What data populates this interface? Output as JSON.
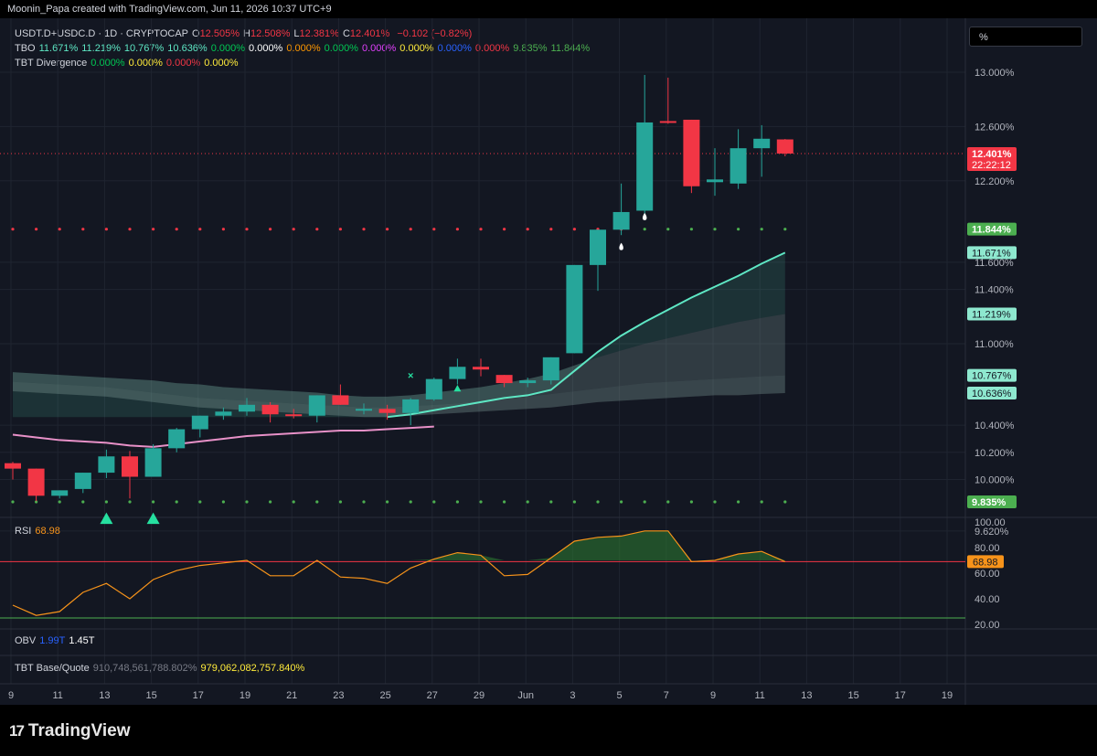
{
  "header": {
    "attribution": "Moonin_Papa created with TradingView.com, Jun 11, 2026 10:37 UTC+9"
  },
  "legend": {
    "symbol": "USDT.D+USDC.D · 1D · CRYPTOCAP",
    "ohlc": [
      {
        "k": "O",
        "v": "12.505%"
      },
      {
        "k": "H",
        "v": "12.508%"
      },
      {
        "k": "L",
        "v": "12.381%"
      },
      {
        "k": "C",
        "v": "12.401%"
      }
    ],
    "change": "−0.102 (−0.82%)",
    "tbo_name": "TBO",
    "tbo_values": [
      {
        "v": "11.671%",
        "c": "#5ee7c4"
      },
      {
        "v": "11.219%",
        "c": "#5ee7c4"
      },
      {
        "v": "10.767%",
        "c": "#5ee7c4"
      },
      {
        "v": "10.636%",
        "c": "#5ee7c4"
      },
      {
        "v": "0.000%",
        "c": "#00c853"
      },
      {
        "v": "0.000%",
        "c": "#ffffff"
      },
      {
        "v": "0.000%",
        "c": "#ff9800"
      },
      {
        "v": "0.000%",
        "c": "#00c853"
      },
      {
        "v": "0.000%",
        "c": "#e040fb"
      },
      {
        "v": "0.000%",
        "c": "#ffeb3b"
      },
      {
        "v": "0.000%",
        "c": "#2962ff"
      },
      {
        "v": "0.000%",
        "c": "#f23645"
      },
      {
        "v": "9.835%",
        "c": "#4caf50"
      },
      {
        "v": "11.844%",
        "c": "#4caf50"
      }
    ],
    "div_name": "TBT Divergence",
    "div_values": [
      {
        "v": "0.000%",
        "c": "#00c853"
      },
      {
        "v": "0.000%",
        "c": "#ffeb3b"
      },
      {
        "v": "0.000%",
        "c": "#f23645"
      },
      {
        "v": "0.000%",
        "c": "#ffeb3b"
      }
    ],
    "price_scale_unit": "%"
  },
  "colors": {
    "up": "#26a69a",
    "down": "#f23645",
    "bg": "#131722",
    "grid": "#1f2430",
    "axis_text": "#b2b5be",
    "band_line": "#5ee7c4",
    "pink_line": "#e891c8",
    "rsi_line": "#f7931a"
  },
  "chart_data": {
    "type": "candlestick",
    "title": "USDT.D+USDC.D · 1D · CRYPTOCAP",
    "x_ticks": [
      "9",
      "11",
      "13",
      "15",
      "17",
      "19",
      "21",
      "23",
      "25",
      "27",
      "29",
      "Jun",
      "3",
      "5",
      "7",
      "9",
      "11",
      "13",
      "15",
      "17",
      "19"
    ],
    "y_ticks": [
      "13.000%",
      "12.600%",
      "12.200%",
      "11.600%",
      "11.400%",
      "11.000%",
      "10.400%",
      "10.200%",
      "10.000%",
      "9.620%"
    ],
    "price_labels": [
      {
        "v": "12.401%",
        "sub": "22:22:12",
        "bg": "#f23645",
        "fg": "#ffffff",
        "y": 12.401
      },
      {
        "v": "11.844%",
        "bg": "#4caf50",
        "fg": "#ffffff",
        "y": 11.844
      },
      {
        "v": "11.671%",
        "bg": "#8ee8cf",
        "fg": "#131722",
        "y": 11.671
      },
      {
        "v": "11.219%",
        "bg": "#8ee8cf",
        "fg": "#131722",
        "y": 11.219
      },
      {
        "v": "10.767%",
        "bg": "#8ee8cf",
        "fg": "#131722",
        "y": 10.767
      },
      {
        "v": "10.636%",
        "bg": "#8ee8cf",
        "fg": "#131722",
        "y": 10.636
      },
      {
        "v": "9.835%",
        "bg": "#4caf50",
        "fg": "#ffffff",
        "y": 9.835
      }
    ],
    "dates": [
      "May 9",
      "May 10",
      "May 11",
      "May 12",
      "May 13",
      "May 14",
      "May 15",
      "May 16",
      "May 17",
      "May 18",
      "May 19",
      "May 20",
      "May 21",
      "May 22",
      "May 23",
      "May 24",
      "May 25",
      "May 26",
      "May 27",
      "May 28",
      "May 29",
      "May 30",
      "May 31",
      "Jun 1",
      "Jun 2",
      "Jun 3",
      "Jun 4",
      "Jun 5",
      "Jun 6",
      "Jun 7",
      "Jun 8",
      "Jun 9",
      "Jun 10",
      "Jun 11"
    ],
    "candles": [
      [
        10.12,
        10.13,
        10.0,
        10.08
      ],
      [
        10.08,
        10.08,
        9.84,
        9.88
      ],
      [
        9.88,
        9.92,
        9.86,
        9.92
      ],
      [
        9.93,
        10.05,
        9.9,
        10.05
      ],
      [
        10.05,
        10.22,
        10.01,
        10.17
      ],
      [
        10.17,
        10.21,
        9.86,
        10.02
      ],
      [
        10.02,
        10.26,
        10.02,
        10.23
      ],
      [
        10.23,
        10.38,
        10.2,
        10.37
      ],
      [
        10.37,
        10.47,
        10.31,
        10.47
      ],
      [
        10.47,
        10.53,
        10.44,
        10.5
      ],
      [
        10.5,
        10.6,
        10.47,
        10.55
      ],
      [
        10.55,
        10.57,
        10.42,
        10.48
      ],
      [
        10.48,
        10.52,
        10.45,
        10.47
      ],
      [
        10.47,
        10.62,
        10.42,
        10.62
      ],
      [
        10.62,
        10.7,
        10.55,
        10.55
      ],
      [
        10.52,
        10.56,
        10.48,
        10.52
      ],
      [
        10.52,
        10.55,
        10.44,
        10.49
      ],
      [
        10.49,
        10.6,
        10.4,
        10.59
      ],
      [
        10.59,
        10.75,
        10.58,
        10.74
      ],
      [
        10.74,
        10.89,
        10.7,
        10.83
      ],
      [
        10.83,
        10.89,
        10.76,
        10.81
      ],
      [
        10.77,
        10.77,
        10.68,
        10.71
      ],
      [
        10.71,
        10.75,
        10.68,
        10.73
      ],
      [
        10.73,
        10.9,
        10.7,
        10.9
      ],
      [
        10.93,
        11.58,
        10.93,
        11.58
      ],
      [
        11.58,
        11.84,
        11.39,
        11.84
      ],
      [
        11.84,
        12.18,
        11.8,
        11.97
      ],
      [
        11.98,
        12.98,
        11.96,
        12.63
      ],
      [
        12.64,
        12.96,
        12.62,
        12.63
      ],
      [
        12.65,
        12.65,
        12.11,
        12.16
      ],
      [
        12.19,
        12.44,
        12.09,
        12.21
      ],
      [
        12.18,
        12.58,
        12.14,
        12.44
      ],
      [
        12.44,
        12.61,
        12.23,
        12.51
      ],
      [
        12.505,
        12.508,
        12.381,
        12.401
      ]
    ],
    "tbo_fast": [
      10.46,
      10.46,
      10.46,
      10.46,
      10.46,
      10.46,
      10.46,
      10.46,
      10.46,
      10.46,
      10.46,
      10.46,
      10.46,
      10.46,
      10.46,
      10.46,
      10.46,
      10.48,
      10.51,
      10.54,
      10.57,
      10.6,
      10.62,
      10.66,
      10.8,
      10.94,
      11.06,
      11.16,
      11.25,
      11.34,
      11.42,
      11.5,
      11.59,
      11.671
    ],
    "tbo_upper": [
      10.79,
      10.78,
      10.77,
      10.76,
      10.75,
      10.74,
      10.73,
      10.71,
      10.7,
      10.68,
      10.67,
      10.66,
      10.65,
      10.64,
      10.62,
      10.61,
      10.61,
      10.62,
      10.64,
      10.66,
      10.68,
      10.71,
      10.74,
      10.78,
      10.84,
      10.9,
      10.95,
      11.0,
      11.04,
      11.08,
      11.12,
      11.16,
      11.19,
      11.219
    ],
    "tbo_mid": [
      10.72,
      10.71,
      10.7,
      10.69,
      10.68,
      10.66,
      10.64,
      10.62,
      10.6,
      10.59,
      10.58,
      10.57,
      10.56,
      10.55,
      10.54,
      10.53,
      10.53,
      10.54,
      10.55,
      10.56,
      10.58,
      10.59,
      10.61,
      10.63,
      10.65,
      10.67,
      10.69,
      10.71,
      10.72,
      10.73,
      10.74,
      10.75,
      10.76,
      10.767
    ],
    "tbo_lower": [
      10.65,
      10.64,
      10.63,
      10.62,
      10.61,
      10.59,
      10.57,
      10.55,
      10.53,
      10.52,
      10.51,
      10.5,
      10.49,
      10.48,
      10.47,
      10.46,
      10.46,
      10.47,
      10.48,
      10.49,
      10.5,
      10.51,
      10.52,
      10.53,
      10.55,
      10.57,
      10.58,
      10.59,
      10.6,
      10.61,
      10.62,
      10.62,
      10.63,
      10.636
    ],
    "tbo_slow": [
      10.33,
      10.31,
      10.29,
      10.28,
      10.27,
      10.25,
      10.24,
      10.26,
      10.28,
      10.3,
      10.32,
      10.33,
      10.34,
      10.35,
      10.36,
      10.36,
      10.37,
      10.38,
      10.39
    ],
    "resistance_dots": 11.844,
    "support_dots": 9.835,
    "rsi": {
      "name": "RSI",
      "value": "68.98",
      "level": 68.98,
      "ticks": [
        "100.00",
        "80.00",
        "60.00",
        "40.00",
        "20.00"
      ],
      "values": [
        35,
        27,
        30,
        45,
        52,
        40,
        55,
        62,
        66,
        68,
        70,
        58,
        58,
        70,
        57,
        56,
        52,
        64,
        71,
        76,
        74,
        58,
        59,
        72,
        85,
        88,
        89,
        93,
        93,
        69,
        70,
        75,
        77,
        68.98
      ]
    },
    "obv": {
      "name": "OBV",
      "v1": "1.99T",
      "v2": "1.45T"
    },
    "base_quote": {
      "name": "TBT Base/Quote",
      "v1": "910,748,561,788.802%",
      "v2": "979,062,082,757.840%"
    }
  },
  "logo_text": "TradingView",
  "logo_mark": "17"
}
